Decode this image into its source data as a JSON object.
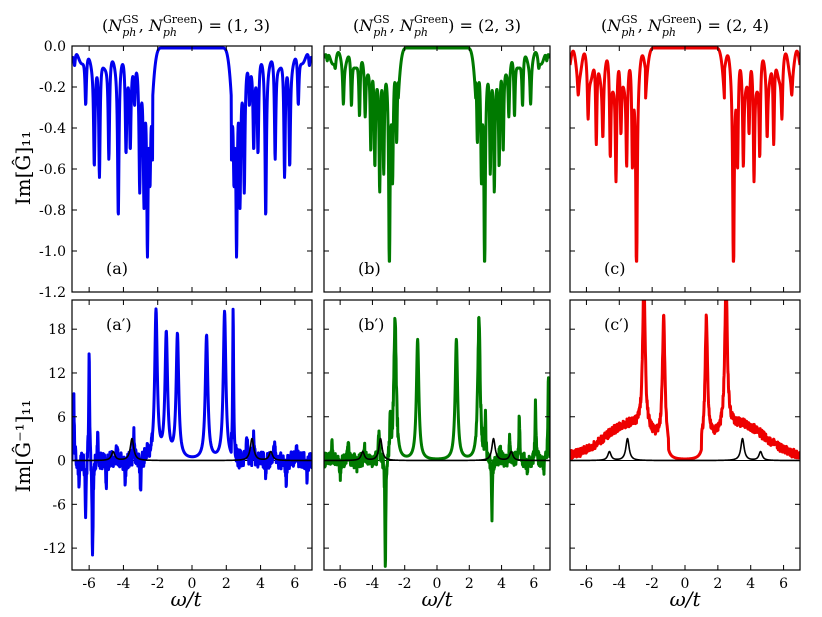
{
  "figure": {
    "xlabel": "ω/t",
    "ylabel_top": "Im[Ĝ]₁₁",
    "ylabel_bottom": "Im[Ĝ⁻¹]₁₁"
  },
  "colors": {
    "blue": "#0000ee",
    "green": "#007a00",
    "red": "#ee0000",
    "black": "#000000"
  },
  "chart_data": [
    {
      "type": "line",
      "id": "a",
      "row": "top",
      "col": 0,
      "title": "(N_ph^GS, N_ph^Green) = (1, 3)",
      "panel_label": "(a)",
      "xlim": [
        -7,
        7
      ],
      "ylim": [
        -1.2,
        0.0
      ],
      "xticks": [
        -6,
        -4,
        -2,
        0,
        2,
        4,
        6
      ],
      "yticks": [
        0.0,
        -0.2,
        -0.4,
        -0.6,
        -0.8,
        -1.0,
        -1.2
      ],
      "ytick_labels": [
        "0.0",
        "-0.2",
        "-0.4",
        "-0.6",
        "-0.8",
        "-1.0",
        "-1.2"
      ],
      "series": [
        {
          "color": "#0000ee",
          "gap": 2.3,
          "dips": [
            [
              2.3,
              0.4
            ],
            [
              2.45,
              0.5
            ],
            [
              2.6,
              0.9
            ],
            [
              2.8,
              0.65
            ],
            [
              3.05,
              0.6
            ],
            [
              3.35,
              0.22
            ],
            [
              3.6,
              0.4
            ],
            [
              3.85,
              0.45
            ],
            [
              4.3,
              0.75
            ],
            [
              4.85,
              0.5
            ],
            [
              5.4,
              0.6
            ],
            [
              5.7,
              0.5
            ],
            [
              6.2,
              0.25
            ],
            [
              6.85,
              0.07
            ]
          ],
          "wiggle": 0.05
        }
      ]
    },
    {
      "type": "line",
      "id": "b",
      "row": "top",
      "col": 1,
      "title": "(N_ph^GS, N_ph^Green) = (2, 3)",
      "panel_label": "(b)",
      "xlim": [
        -7,
        7
      ],
      "ylim": [
        -1.2,
        0.0
      ],
      "xticks": [
        -6,
        -4,
        -2,
        0,
        2,
        4,
        6
      ],
      "yticks": [
        0.0,
        -0.2,
        -0.4,
        -0.6,
        -0.8,
        -1.0,
        -1.2
      ],
      "series": [
        {
          "color": "#007a00",
          "gap": 2.4,
          "dips": [
            [
              2.5,
              0.4
            ],
            [
              2.75,
              0.55
            ],
            [
              2.95,
              1.01
            ],
            [
              3.3,
              0.55
            ],
            [
              3.55,
              0.6
            ],
            [
              3.85,
              0.5
            ],
            [
              4.1,
              0.45
            ],
            [
              4.45,
              0.25
            ],
            [
              4.8,
              0.3
            ],
            [
              5.3,
              0.25
            ],
            [
              5.8,
              0.2
            ],
            [
              6.3,
              0.05
            ],
            [
              6.8,
              0.05
            ]
          ],
          "wiggle": 0.06
        }
      ]
    },
    {
      "type": "line",
      "id": "c",
      "row": "top",
      "col": 2,
      "title": "(N_ph^GS, N_ph^Green) = (2, 4)",
      "panel_label": "(c)",
      "xlim": [
        -7,
        7
      ],
      "ylim": [
        -1.2,
        0.0
      ],
      "xticks": [
        -6,
        -4,
        -2,
        0,
        2,
        4,
        6
      ],
      "yticks": [
        0.0,
        -0.2,
        -0.4,
        -0.6,
        -0.8,
        -1.0,
        -1.2
      ],
      "series": [
        {
          "color": "#ee0000",
          "gap": 2.4,
          "dips": [
            [
              2.95,
              1.01
            ],
            [
              3.2,
              0.5
            ],
            [
              3.55,
              0.45
            ],
            [
              3.9,
              0.35
            ],
            [
              4.2,
              0.55
            ],
            [
              4.55,
              0.45
            ],
            [
              5.0,
              0.3
            ],
            [
              5.4,
              0.45
            ],
            [
              5.9,
              0.25
            ],
            [
              6.5,
              0.1
            ]
          ],
          "wiggle": 0.12
        }
      ]
    },
    {
      "type": "line",
      "id": "a-prime",
      "row": "bottom",
      "col": 0,
      "panel_label": "(a′)",
      "xlim": [
        -7,
        7
      ],
      "ylim": [
        -15,
        22
      ],
      "xticks": [
        -6,
        -4,
        -2,
        0,
        2,
        4,
        6
      ],
      "xtick_labels": [
        "-6",
        "-4",
        "-2",
        "0",
        "2",
        "4",
        "6"
      ],
      "yticks": [
        18,
        12,
        6,
        0,
        -6,
        -12
      ],
      "ytick_labels": [
        "18",
        "12",
        "6",
        "0",
        "-6",
        "-12"
      ],
      "series": [
        {
          "color": "#0000ee",
          "gap": 2.3,
          "peaks": [
            [
              0.85,
              17
            ],
            [
              1.9,
              20.3
            ],
            [
              -2.1,
              20.3
            ],
            [
              -1.5,
              17
            ],
            [
              -0.85,
              17
            ]
          ],
          "spikes": [
            [
              -6.9,
              9.5
            ],
            [
              -6.6,
              -3
            ],
            [
              -6.2,
              -8
            ],
            [
              -6.0,
              14.5
            ],
            [
              -5.8,
              -14
            ],
            [
              -5.5,
              3
            ],
            [
              -5.0,
              -3
            ],
            [
              -4.4,
              2
            ],
            [
              -3.9,
              -3
            ],
            [
              -3.4,
              3.5
            ],
            [
              -3.0,
              -4
            ],
            [
              -2.6,
              2
            ],
            [
              2.1,
              -15
            ],
            [
              2.4,
              20
            ],
            [
              2.7,
              -1
            ],
            [
              3.2,
              3
            ],
            [
              3.6,
              4
            ],
            [
              4.3,
              -2
            ],
            [
              4.8,
              3
            ],
            [
              5.5,
              -3
            ],
            [
              6.1,
              2
            ],
            [
              6.7,
              -2
            ]
          ],
          "noise": 1.2
        },
        {
          "color": "#000000",
          "peaks": [
            [
              -4.6,
              1.2
            ],
            [
              -3.5,
              3
            ],
            [
              3.5,
              3
            ],
            [
              4.6,
              1.2
            ]
          ],
          "width": 0.12
        }
      ]
    },
    {
      "type": "line",
      "id": "b-prime",
      "row": "bottom",
      "col": 1,
      "panel_label": "(b′)",
      "xlim": [
        -7,
        7
      ],
      "ylim": [
        -15,
        22
      ],
      "xticks": [
        -6,
        -4,
        -2,
        0,
        2,
        4,
        6
      ],
      "xtick_labels": [
        "-6",
        "-4",
        "-2",
        "0",
        "2",
        "4",
        "6"
      ],
      "yticks": [
        18,
        12,
        6,
        0,
        -6,
        -12
      ],
      "series": [
        {
          "color": "#007a00",
          "gap": 2.4,
          "peaks": [
            [
              -2.6,
              19.5
            ],
            [
              -1.2,
              16.5
            ],
            [
              1.2,
              16.5
            ],
            [
              2.6,
              19.5
            ]
          ],
          "spikes": [
            [
              -6.5,
              2
            ],
            [
              -6.0,
              -2
            ],
            [
              -5.5,
              2.5
            ],
            [
              -5.0,
              -1.5
            ],
            [
              -4.5,
              2
            ],
            [
              -3.6,
              4
            ],
            [
              -3.2,
              -15
            ],
            [
              -2.9,
              5
            ],
            [
              3.0,
              5
            ],
            [
              3.4,
              -8
            ],
            [
              3.9,
              2
            ],
            [
              4.5,
              3
            ],
            [
              5.1,
              6
            ],
            [
              5.6,
              -2
            ],
            [
              6.1,
              8
            ],
            [
              6.6,
              -2
            ],
            [
              6.9,
              12
            ]
          ],
          "noise": 1.0
        },
        {
          "color": "#000000",
          "peaks": [
            [
              -4.6,
              1.2
            ],
            [
              -3.5,
              3
            ],
            [
              3.5,
              3
            ],
            [
              4.6,
              1.2
            ]
          ],
          "width": 0.12
        }
      ]
    },
    {
      "type": "line",
      "id": "c-prime",
      "row": "bottom",
      "col": 2,
      "panel_label": "(c′)",
      "xlim": [
        -7,
        7
      ],
      "ylim": [
        -15,
        22
      ],
      "xticks": [
        -6,
        -4,
        -2,
        0,
        2,
        4,
        6
      ],
      "xtick_labels": [
        "-6",
        "-4",
        "-2",
        "0",
        "2",
        "4",
        "6"
      ],
      "yticks": [
        18,
        12,
        6,
        0,
        -6,
        -12
      ],
      "series": [
        {
          "color": "#ee0000",
          "gap": 1.0,
          "peaks": [
            [
              -2.5,
              20.5
            ],
            [
              -1.3,
              17
            ],
            [
              1.3,
              17
            ],
            [
              2.5,
              20.5
            ]
          ],
          "background": 4.5,
          "noise": 0.6
        },
        {
          "color": "#000000",
          "peaks": [
            [
              -4.6,
              1.2
            ],
            [
              -3.5,
              3
            ],
            [
              3.5,
              3
            ],
            [
              4.6,
              1.2
            ]
          ],
          "width": 0.12
        }
      ]
    }
  ]
}
